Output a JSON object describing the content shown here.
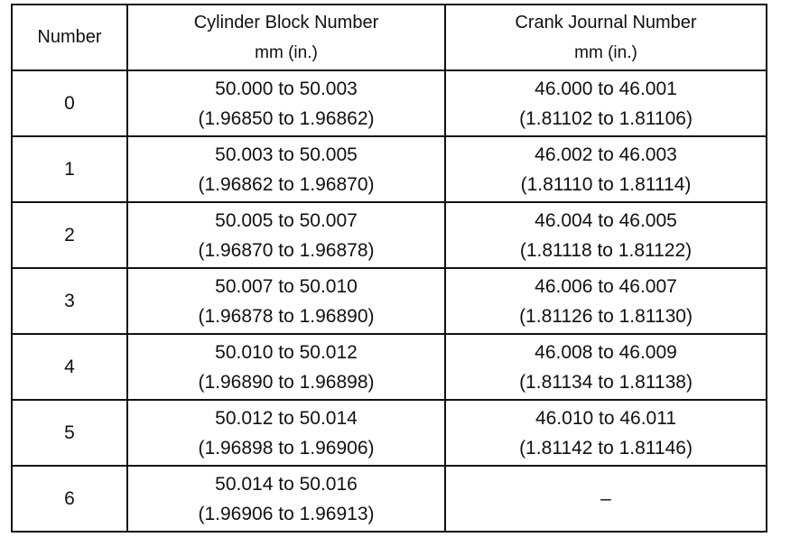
{
  "table": {
    "header": [
      "Number",
      [
        "Cylinder Block Number",
        "mm (in.)"
      ],
      [
        "Crank Journal Number",
        "mm (in.)"
      ]
    ],
    "rows": [
      [
        "0",
        [
          "50.000 to 50.003",
          "(1.96850 to 1.96862)"
        ],
        [
          "46.000 to 46.001",
          "(1.81102 to 1.81106)"
        ]
      ],
      [
        "1",
        [
          "50.003 to 50.005",
          "(1.96862 to 1.96870)"
        ],
        [
          "46.002 to 46.003",
          "(1.81110 to 1.81114)"
        ]
      ],
      [
        "2",
        [
          "50.005 to 50.007",
          "(1.96870 to 1.96878)"
        ],
        [
          "46.004 to 46.005",
          "(1.81118 to 1.81122)"
        ]
      ],
      [
        "3",
        [
          "50.007 to 50.010",
          "(1.96878 to 1.96890)"
        ],
        [
          "46.006 to 46.007",
          "(1.81126 to 1.81130)"
        ]
      ],
      [
        "4",
        [
          "50.010 to 50.012",
          "(1.96890 to 1.96898)"
        ],
        [
          "46.008 to 46.009",
          "(1.81134 to 1.81138)"
        ]
      ],
      [
        "5",
        [
          "50.012 to 50.014",
          "(1.96898 to 1.96906)"
        ],
        [
          "46.010 to 46.011",
          "(1.81142 to 1.81146)"
        ]
      ],
      [
        "6",
        [
          "50.014 to 50.016",
          "(1.96906 to 1.96913)"
        ],
        "–"
      ]
    ]
  }
}
